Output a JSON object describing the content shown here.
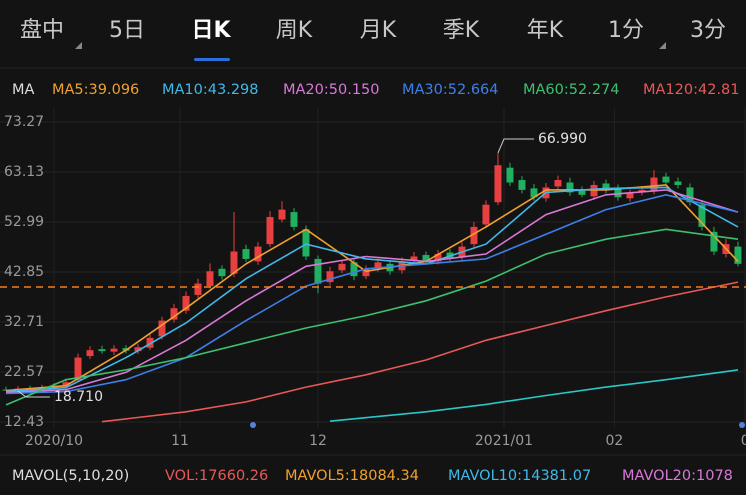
{
  "tabs": [
    {
      "label": "盘中",
      "dropdown": true
    },
    {
      "label": "5日"
    },
    {
      "label": "日K"
    },
    {
      "label": "周K"
    },
    {
      "label": "月K"
    },
    {
      "label": "季K"
    },
    {
      "label": "年K"
    },
    {
      "label": "1分",
      "dropdown": true
    },
    {
      "label": "3分"
    }
  ],
  "active_tab": 2,
  "ma_legend": [
    {
      "label": "MA",
      "color": "#dddddd"
    },
    {
      "label": "MA5:39.096",
      "color": "#f0a030"
    },
    {
      "label": "MA10:43.298",
      "color": "#40b8e8"
    },
    {
      "label": "MA20:50.150",
      "color": "#d878d8"
    },
    {
      "label": "MA30:52.664",
      "color": "#3d80e8"
    },
    {
      "label": "MA60:52.274",
      "color": "#3cc070"
    },
    {
      "label": "MA120:42.81",
      "color": "#e85858"
    }
  ],
  "vol_legend": [
    {
      "label": "MAVOL(5,10,20)",
      "color": "#dddddd"
    },
    {
      "label": "VOL:17660.26",
      "color": "#e85858"
    },
    {
      "label": "MAVOL5:18084.34",
      "color": "#f0a030"
    },
    {
      "label": "MAVOL10:14381.07",
      "color": "#40b8e8"
    },
    {
      "label": "MAVOL20:1078",
      "color": "#d878d8"
    }
  ],
  "chart_data": {
    "type": "candlestick",
    "open": [
      19.0,
      18.9,
      19.3,
      18.8,
      19.4,
      19.8,
      21.0,
      25.8,
      27.2,
      26.7,
      27.4,
      26.8,
      27.5,
      29.8,
      33.2,
      35.0,
      38.2,
      40.0,
      43.5,
      42.5,
      47.5,
      45.0,
      48.5,
      53.5,
      55.0,
      51.5,
      45.5,
      40.8,
      43.2,
      44.8,
      42.0,
      43.6,
      44.5,
      43.2,
      45.2,
      46.3,
      45.0,
      46.8,
      45.8,
      48.5,
      52.5,
      57.0,
      64.0,
      61.5,
      59.8,
      57.8,
      60.2,
      61.0,
      59.3,
      58.2,
      60.8,
      59.8,
      57.8,
      59.0,
      59.2,
      62.2,
      61.2,
      60.0,
      56.5,
      51.0,
      46.5,
      48.0
    ],
    "high": [
      19.6,
      19.7,
      19.8,
      20.0,
      20.3,
      21.2,
      26.3,
      27.8,
      27.9,
      28.0,
      28.0,
      28.2,
      30.2,
      33.8,
      36.4,
      38.9,
      41.5,
      44.6,
      44.2,
      55.0,
      48.4,
      48.9,
      55.2,
      57.2,
      55.8,
      52.3,
      46.2,
      43.9,
      45.3,
      45.5,
      44.2,
      45.6,
      45.2,
      45.8,
      46.9,
      47.0,
      47.3,
      47.5,
      48.9,
      53.0,
      57.4,
      66.99,
      65.0,
      62.3,
      60.7,
      60.9,
      62.4,
      62.0,
      60.2,
      61.3,
      61.6,
      60.6,
      59.6,
      60.3,
      63.5,
      63.0,
      62.0,
      60.8,
      57.4,
      52.0,
      49.5,
      49.0
    ],
    "low": [
      18.8,
      18.71,
      18.8,
      18.4,
      19.0,
      19.4,
      20.6,
      25.2,
      26.3,
      26.0,
      26.3,
      26.2,
      27.0,
      29.2,
      32.6,
      34.4,
      37.6,
      39.5,
      41.3,
      41.8,
      44.9,
      44.3,
      47.9,
      52.9,
      51.3,
      45.3,
      38.5,
      40.1,
      42.6,
      41.2,
      41.4,
      42.9,
      42.3,
      42.5,
      44.6,
      44.6,
      44.4,
      45.0,
      45.2,
      47.9,
      51.8,
      56.4,
      60.3,
      58.8,
      57.3,
      57.1,
      59.6,
      58.3,
      58.0,
      57.5,
      58.8,
      57.3,
      57.1,
      58.4,
      58.6,
      60.4,
      59.8,
      56.3,
      51.3,
      46.3,
      45.8,
      44.0
    ],
    "close": [
      18.9,
      19.2,
      18.9,
      19.5,
      19.8,
      20.5,
      25.5,
      27.0,
      26.8,
      27.3,
      26.9,
      27.6,
      29.5,
      33.0,
      35.5,
      38.0,
      40.5,
      43.0,
      42.0,
      47.0,
      45.5,
      48.0,
      54.0,
      55.5,
      52.0,
      46.0,
      40.5,
      43.0,
      44.5,
      42.0,
      43.5,
      44.8,
      43.0,
      45.0,
      46.0,
      45.2,
      46.5,
      45.5,
      48.0,
      52.0,
      56.5,
      64.5,
      61.0,
      59.5,
      58.0,
      60.0,
      61.5,
      59.0,
      58.5,
      60.5,
      59.5,
      58.0,
      58.8,
      59.5,
      62.0,
      61.0,
      60.5,
      57.0,
      52.0,
      47.0,
      48.5,
      44.5
    ],
    "up_color": "#e84040",
    "down_color": "#20b060",
    "series": [
      {
        "color": "#f0a030",
        "x": [
          0,
          5,
          10,
          15,
          20,
          25,
          30,
          35,
          40,
          45,
          50,
          55,
          61
        ],
        "values": [
          18.8,
          19.8,
          27.0,
          35.5,
          44.5,
          51.5,
          43.0,
          45.0,
          52.0,
          59.5,
          59.5,
          60.5,
          45.0
        ]
      },
      {
        "color": "#40b8e8",
        "x": [
          0,
          5,
          10,
          15,
          20,
          25,
          30,
          35,
          40,
          45,
          50,
          55,
          61
        ],
        "values": [
          18.6,
          19.4,
          25.5,
          32.5,
          41.5,
          48.5,
          45.5,
          44.5,
          48.5,
          59.0,
          59.8,
          60.0,
          52.0
        ]
      },
      {
        "color": "#d878d8",
        "x": [
          0,
          5,
          10,
          15,
          20,
          25,
          30,
          35,
          40,
          45,
          50,
          55,
          61
        ],
        "values": [
          18.4,
          19.0,
          22.5,
          29.0,
          37.0,
          44.0,
          46.0,
          45.0,
          46.5,
          54.5,
          58.5,
          59.5,
          55.0
        ]
      },
      {
        "color": "#3d80e8",
        "x": [
          0,
          5,
          10,
          15,
          20,
          25,
          30,
          35,
          40,
          45,
          50,
          55,
          61
        ],
        "values": [
          18.2,
          18.6,
          21.0,
          25.5,
          33.0,
          40.0,
          43.5,
          44.5,
          45.5,
          50.5,
          55.5,
          58.5,
          55.0
        ]
      },
      {
        "color": "#3cc070",
        "x": [
          0,
          5,
          10,
          15,
          20,
          25,
          30,
          35,
          40,
          45,
          50,
          55,
          61
        ],
        "values": [
          15.9,
          21.0,
          23.0,
          25.5,
          28.5,
          31.5,
          34.0,
          37.0,
          41.0,
          46.5,
          49.5,
          51.5,
          49.5
        ]
      },
      {
        "color": "#e85858",
        "x": [
          8,
          15,
          20,
          25,
          30,
          35,
          40,
          45,
          50,
          55,
          61
        ],
        "values": [
          12.5,
          14.5,
          16.5,
          19.5,
          22.0,
          25.0,
          29.0,
          32.0,
          35.0,
          37.8,
          40.8
        ]
      },
      {
        "color": "#28c8c8",
        "x": [
          27,
          35,
          40,
          45,
          50,
          55,
          61
        ],
        "values": [
          12.6,
          14.5,
          16.0,
          17.8,
          19.5,
          21.0,
          23.0
        ]
      }
    ],
    "price_line": {
      "value": 39.8,
      "color": "#f08020"
    },
    "annotations": [
      {
        "label": "66.990",
        "index": 41,
        "value": 66.99
      },
      {
        "label": "18.710",
        "index": 1,
        "value": 18.71
      }
    ],
    "xlim": [
      -0.5,
      61.67
    ],
    "ylim": [
      12.43,
      73.27
    ],
    "yticks": [
      12.43,
      22.57,
      32.71,
      42.85,
      52.99,
      63.13,
      73.27
    ],
    "xticks": [
      {
        "value": 4,
        "label": "2020/10"
      },
      {
        "value": 14.5,
        "label": "11"
      },
      {
        "value": 26,
        "label": "12"
      },
      {
        "value": 41.5,
        "label": "2021/01"
      },
      {
        "value": 50.7,
        "label": "02"
      },
      {
        "value": 61.6,
        "label": "0"
      }
    ],
    "grid": true
  }
}
